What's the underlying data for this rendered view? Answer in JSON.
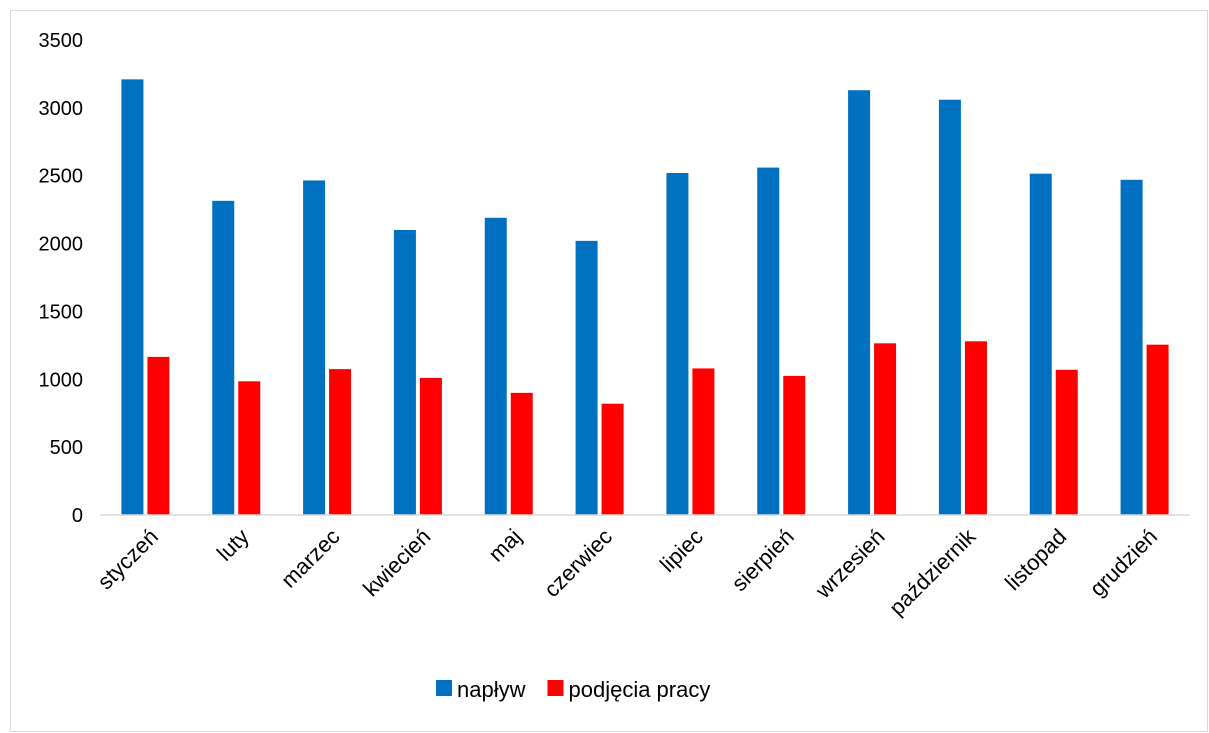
{
  "chart_data": {
    "type": "bar",
    "title": "",
    "xlabel": "",
    "ylabel": "",
    "ylim": [
      0,
      3500
    ],
    "yticks": [
      0,
      500,
      1000,
      1500,
      2000,
      2500,
      3000,
      3500
    ],
    "grid": false,
    "legend_position": "bottom",
    "categories": [
      "styczeń",
      "luty",
      "marzec",
      "kwiecień",
      "maj",
      "czerwiec",
      "lipiec",
      "sierpień",
      "wrzesień",
      "październik",
      "listopad",
      "grudzień"
    ],
    "series": [
      {
        "name": "napływ",
        "color": "#0070c0",
        "values": [
          3210,
          2315,
          2465,
          2100,
          2190,
          2020,
          2520,
          2560,
          3130,
          3060,
          2515,
          2470
        ]
      },
      {
        "name": "podjęcia pracy",
        "color": "#ff0000",
        "values": [
          1165,
          985,
          1075,
          1010,
          900,
          820,
          1080,
          1025,
          1265,
          1280,
          1070,
          1255
        ]
      }
    ]
  }
}
